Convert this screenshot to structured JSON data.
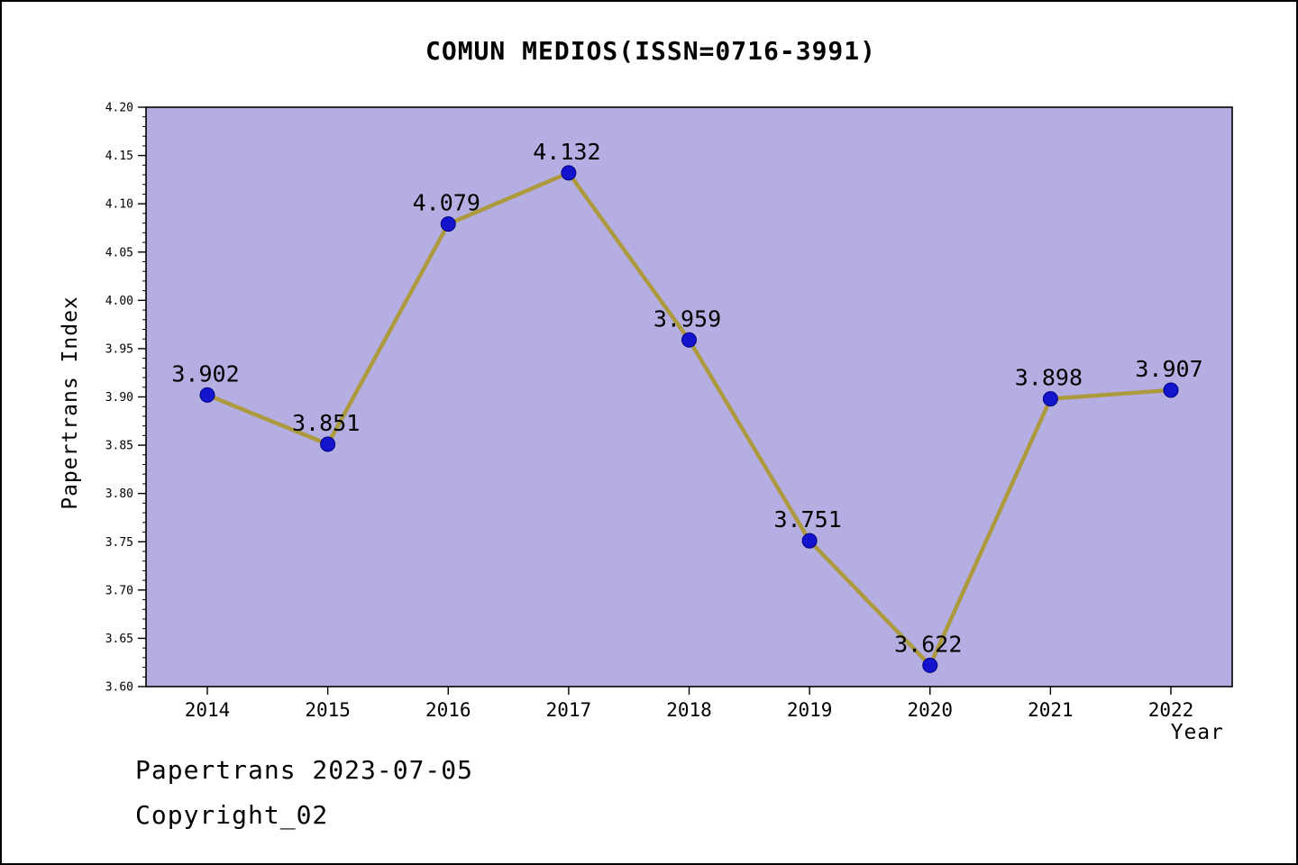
{
  "title": "COMUN MEDIOS(ISSN=0716-3991)",
  "footer": {
    "line1": "Papertrans 2023-07-05",
    "line2": "Copyright_02"
  },
  "chart_data": {
    "type": "line",
    "title": "COMUN MEDIOS(ISSN=0716-3991)",
    "x": [
      2014,
      2015,
      2016,
      2017,
      2018,
      2019,
      2020,
      2021,
      2022
    ],
    "values": [
      3.902,
      3.851,
      4.079,
      4.132,
      3.959,
      3.751,
      3.622,
      3.898,
      3.907
    ],
    "xlabel": "Year",
    "ylabel": "Papertrans Index",
    "ylim": [
      3.6,
      4.2
    ],
    "ytick_step": 0.05,
    "ytick_minor_step": 0.01,
    "grid": false,
    "legend": "none",
    "colors": {
      "line": "#ad9a3e",
      "marker": "#1414cf",
      "marker_edge": "#000080",
      "plot_bg": "#b4aee2",
      "page_bg": "#ffffff",
      "axis": "#000000",
      "text": "#000000"
    }
  }
}
